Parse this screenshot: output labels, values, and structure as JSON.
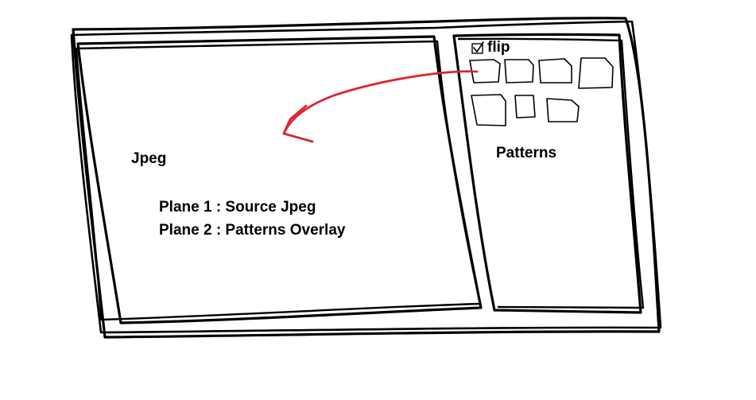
{
  "canvas": {
    "background": "#ffffff",
    "stroke_color": "#000000",
    "arrow_color": "#d9262f"
  },
  "left_panel": {
    "title": "Jpeg",
    "planes": [
      "Plane 1 : Source Jpeg",
      "Plane 2 : Patterns Overlay"
    ]
  },
  "right_panel": {
    "flip_checkbox": {
      "label": "flip",
      "checked": true,
      "icon": "checkbox-checked-icon"
    },
    "patterns_label": "Patterns",
    "pattern_rows": [
      4,
      3
    ],
    "pattern_icon": "pattern-tile-icon"
  },
  "connector": {
    "icon": "drag-arrow-icon",
    "direction": "from first pattern tile to jpeg panel"
  }
}
